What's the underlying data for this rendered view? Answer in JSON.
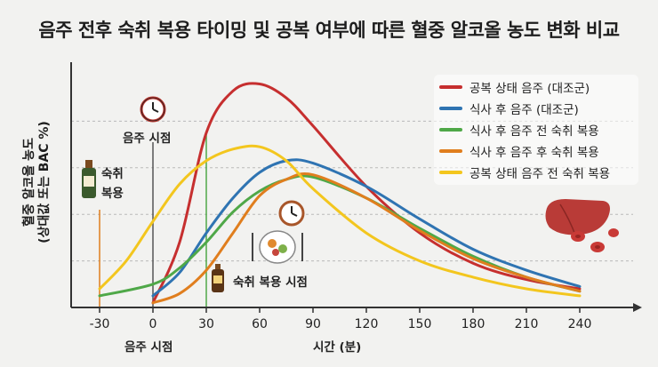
{
  "colors": {
    "empty_stomach": "#c62f2f",
    "after_meal": "#2f74b2",
    "before_drink_empty": "#4fa848",
    "after_meal_after_drink": "#e07e1e",
    "empty_before_drink": "#f3c61e",
    "axis": "#333333",
    "grid": "#b9b9b9",
    "hangover_bottle": "#3b5a2d"
  },
  "icons": [
    "clock-icon",
    "bottle-icon",
    "meal-plate-icon",
    "liver-icon",
    "blood-cells-icon"
  ],
  "notes": {
    "drinking_start_top": "음주 시점",
    "drinking_start_bottom": "음주 시점",
    "hangover_label_1": "숙취",
    "hangover_label_2": "복용",
    "hangover_time": "숙취 복용 시점"
  },
  "chart_data": {
    "type": "line",
    "title": "음주 전후 숙취 복용 타이밍 및 공복 여부에 따른 혈중 알코올 농도 변화 비교",
    "xlabel": "시간 (분)",
    "ylabel": "혈중 알코올 농도",
    "ylabel_sub": "(상대값 또는 BAC %)",
    "xlim": [
      -40,
      250
    ],
    "ylim": [
      0,
      100
    ],
    "xticks": [
      -30,
      0,
      30,
      60,
      90,
      120,
      150,
      180,
      210,
      240
    ],
    "grid": true,
    "legend_position": "top-right",
    "series": [
      {
        "name": "공복 상태 음주 (대조군)",
        "color_key": "empty_stomach",
        "x": [
          0,
          15,
          30,
          45,
          60,
          75,
          90,
          120,
          150,
          180,
          210,
          240
        ],
        "y": [
          2,
          28,
          75,
          93,
          96,
          90,
          78,
          52,
          32,
          19,
          12,
          8
        ]
      },
      {
        "name": "식사 후 음주 (대조군)",
        "color_key": "after_meal",
        "x": [
          0,
          15,
          30,
          45,
          60,
          75,
          90,
          120,
          150,
          180,
          210,
          240
        ],
        "y": [
          5,
          15,
          32,
          47,
          58,
          63,
          62,
          52,
          38,
          25,
          16,
          9
        ]
      },
      {
        "name": "식사 후 음주 전 숙취 복용",
        "color_key": "before_drink_empty",
        "x": [
          -30,
          0,
          15,
          30,
          45,
          60,
          75,
          90,
          120,
          150,
          180,
          210,
          240
        ],
        "y": [
          5,
          10,
          17,
          28,
          41,
          50,
          55,
          56,
          47,
          34,
          22,
          13,
          7
        ]
      },
      {
        "name": "식사 후 음주 후 숙취 복용",
        "color_key": "after_meal_after_drink",
        "x": [
          0,
          15,
          30,
          45,
          60,
          75,
          90,
          120,
          150,
          180,
          210,
          240
        ],
        "y": [
          2,
          6,
          16,
          32,
          48,
          55,
          57,
          47,
          33,
          21,
          13,
          7
        ]
      },
      {
        "name": "공복 상태 음주 전 숙취 복용",
        "color_key": "empty_before_drink",
        "x": [
          -30,
          -15,
          0,
          15,
          30,
          45,
          60,
          75,
          90,
          120,
          150,
          180,
          210,
          240
        ],
        "y": [
          8,
          20,
          37,
          53,
          63,
          68,
          69,
          63,
          51,
          32,
          20,
          13,
          8,
          5
        ]
      }
    ],
    "markers": [
      {
        "x": 0,
        "label_key": "drinking_start_top"
      },
      {
        "x": 30,
        "label_key": "hangover_time"
      },
      {
        "x": -30,
        "label_key": "hangover_label_1"
      }
    ]
  }
}
